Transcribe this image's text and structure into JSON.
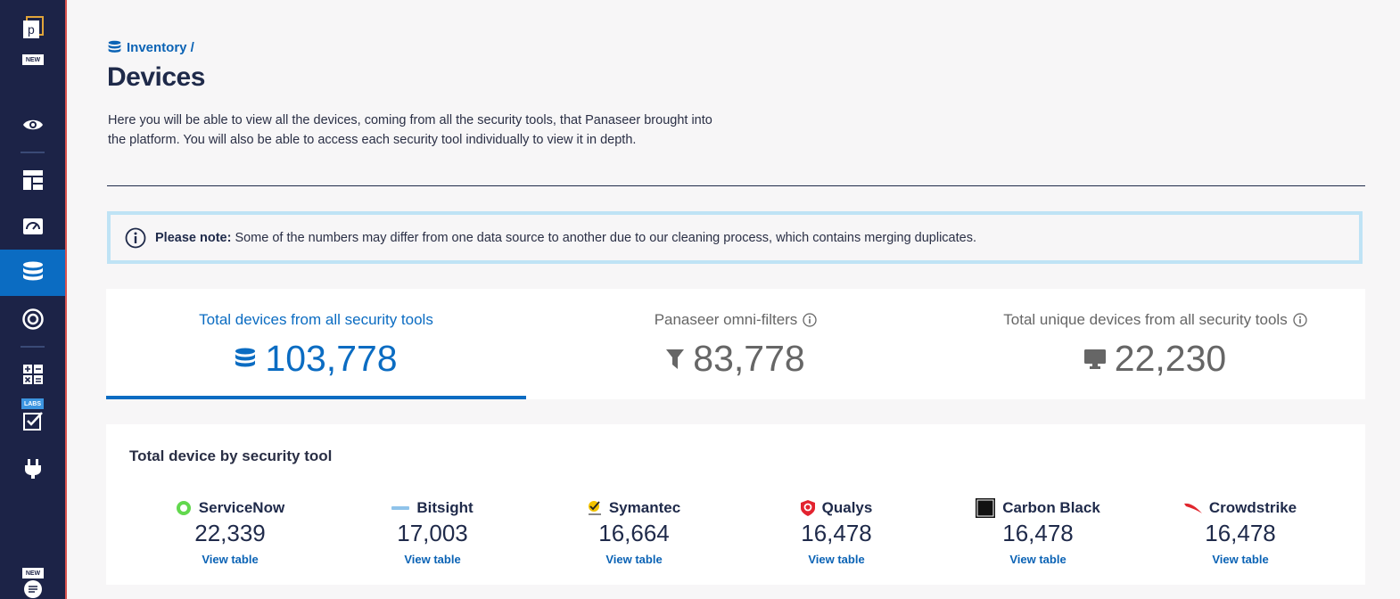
{
  "sidebar": {
    "badges": {
      "new_top": "NEW",
      "labs": "LABS",
      "new_bottom": "NEW"
    }
  },
  "breadcrumb": {
    "label": "Inventory /"
  },
  "page": {
    "title": "Devices",
    "intro": "Here you will be able to view all the devices, coming from all the security tools, that Panaseer brought into the platform. You will also be able to access each security tool individually to view it in depth."
  },
  "note": {
    "label": "Please note:",
    "text": " Some of the numbers may differ from one data source to another due to our cleaning process, which contains merging duplicates."
  },
  "stats": [
    {
      "label": "Total devices from all security tools",
      "value": "103,778",
      "icon": "database-icon",
      "active": true
    },
    {
      "label": "Panaseer omni-filters",
      "value": "83,778",
      "icon": "filter-icon",
      "info": true
    },
    {
      "label": "Total unique devices from all security tools",
      "value": "22,230",
      "icon": "monitor-icon",
      "info": true
    }
  ],
  "tools": {
    "title": "Total device by security tool",
    "items": [
      {
        "name": "ServiceNow",
        "count": "22,339",
        "link": "View table"
      },
      {
        "name": "Bitsight",
        "count": "17,003",
        "link": "View table"
      },
      {
        "name": "Symantec",
        "count": "16,664",
        "link": "View table"
      },
      {
        "name": "Qualys",
        "count": "16,478",
        "link": "View table"
      },
      {
        "name": "Carbon Black",
        "count": "16,478",
        "link": "View table"
      },
      {
        "name": "Crowdstrike",
        "count": "16,478",
        "link": "View table"
      }
    ]
  },
  "colors": {
    "sidebar": "#1c2347",
    "accent": "#0b6cc2",
    "note_border": "#bfe3f5"
  }
}
